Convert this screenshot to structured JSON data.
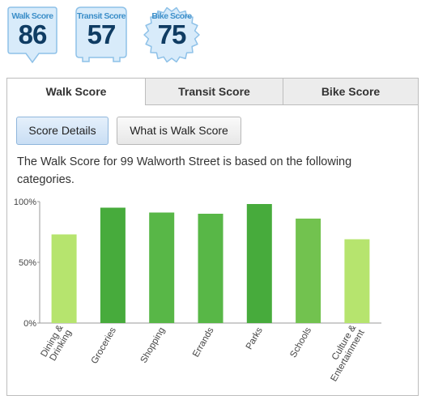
{
  "badges": [
    {
      "name": "Walk Score",
      "value": "86",
      "icon": "walk-score-pin-badge"
    },
    {
      "name": "Transit Score",
      "value": "57",
      "icon": "transit-score-bus-badge"
    },
    {
      "name": "Bike Score",
      "value": "75",
      "icon": "bike-score-gear-badge"
    }
  ],
  "tabs": [
    {
      "label": "Walk Score",
      "active": true
    },
    {
      "label": "Transit Score",
      "active": false
    },
    {
      "label": "Bike Score",
      "active": false
    }
  ],
  "buttons": {
    "score_details": "Score Details",
    "what_is": "What is Walk Score"
  },
  "description": "The Walk Score for 99 Walworth Street is based on the following categories.",
  "chart_data": {
    "type": "bar",
    "ylim": [
      0,
      100
    ],
    "yticks": [
      "100%",
      "50%",
      "0%"
    ],
    "ytick_values": [
      100,
      50,
      0
    ],
    "categories": [
      [
        "Dining &",
        "Drinking"
      ],
      [
        "Groceries"
      ],
      [
        "Shopping"
      ],
      [
        "Errands"
      ],
      [
        "Parks"
      ],
      [
        "Schools"
      ],
      [
        "Culture &",
        "Entertainment"
      ]
    ],
    "values": [
      73,
      95,
      91,
      90,
      98,
      86,
      69
    ],
    "colors": [
      "#b6e46e",
      "#47ab3c",
      "#58b747",
      "#58b747",
      "#47ab3c",
      "#72c24f",
      "#b6e46e"
    ]
  }
}
